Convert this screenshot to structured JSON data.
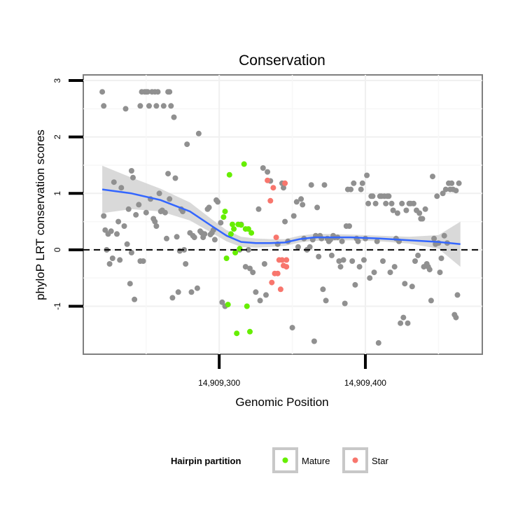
{
  "chart_data": {
    "type": "scatter",
    "title": "Conservation",
    "xlabel": "Genomic Position",
    "ylabel": "phyloP LRT conservation scores",
    "xlim": [
      14909207,
      14909480
    ],
    "ylim": [
      -1.85,
      3.1
    ],
    "xticks": [
      14909300,
      14909400
    ],
    "xtick_labels": [
      "14,909,300",
      "14,909,400"
    ],
    "yticks": [
      -1,
      0,
      1,
      2,
      3
    ],
    "ytick_labels": [
      "-1",
      "0",
      "1",
      "2",
      "3"
    ],
    "reference_line_y": 0,
    "legend": {
      "title": "Hairpin partition",
      "entries": [
        {
          "label": "Mature",
          "color": "#66ee00"
        },
        {
          "label": "Star",
          "color": "#f8766d"
        }
      ]
    },
    "colors": {
      "Other": "#909090",
      "Mature": "#66ee00",
      "Star": "#f8766d",
      "smooth": "#3366ff",
      "band": "#d2d2d2"
    },
    "series": [
      {
        "name": "Other",
        "points": [
          [
            14909220,
            2.8
          ],
          [
            14909221,
            2.55
          ],
          [
            14909221,
            0.6
          ],
          [
            14909222,
            0.35
          ],
          [
            14909223,
            0.0
          ],
          [
            14909224,
            0.28
          ],
          [
            14909225,
            -0.25
          ],
          [
            14909226,
            0.33
          ],
          [
            14909227,
            -0.15
          ],
          [
            14909228,
            1.2
          ],
          [
            14909230,
            0.28
          ],
          [
            14909231,
            0.5
          ],
          [
            14909232,
            -0.18
          ],
          [
            14909233,
            1.1
          ],
          [
            14909235,
            0.42
          ],
          [
            14909236,
            2.5
          ],
          [
            14909237,
            0.1
          ],
          [
            14909238,
            0.72
          ],
          [
            14909239,
            -0.6
          ],
          [
            14909240,
            1.4
          ],
          [
            14909240,
            -0.05
          ],
          [
            14909241,
            1.28
          ],
          [
            14909242,
            -0.88
          ],
          [
            14909243,
            0.62
          ],
          [
            14909245,
            0.8
          ],
          [
            14909246,
            2.55
          ],
          [
            14909246,
            -0.2
          ],
          [
            14909247,
            2.8
          ],
          [
            14909248,
            -0.2
          ],
          [
            14909249,
            2.8
          ],
          [
            14909250,
            0.66
          ],
          [
            14909250,
            2.8
          ],
          [
            14909251,
            2.8
          ],
          [
            14909252,
            2.55
          ],
          [
            14909253,
            0.9
          ],
          [
            14909254,
            2.8
          ],
          [
            14909255,
            0.55
          ],
          [
            14909256,
            0.5
          ],
          [
            14909256,
            2.8
          ],
          [
            14909257,
            2.55
          ],
          [
            14909257,
            0.42
          ],
          [
            14909258,
            2.8
          ],
          [
            14909259,
            1.0
          ],
          [
            14909260,
            0.68
          ],
          [
            14909261,
            0.7
          ],
          [
            14909262,
            2.55
          ],
          [
            14909263,
            0.66
          ],
          [
            14909264,
            0.2
          ],
          [
            14909265,
            1.35
          ],
          [
            14909265,
            2.8
          ],
          [
            14909266,
            0.9
          ],
          [
            14909266,
            2.8
          ],
          [
            14909267,
            2.55
          ],
          [
            14909268,
            -0.85
          ],
          [
            14909269,
            2.35
          ],
          [
            14909270,
            1.27
          ],
          [
            14909271,
            0.23
          ],
          [
            14909272,
            -0.75
          ],
          [
            14909273,
            -0.02
          ],
          [
            14909274,
            0.72
          ],
          [
            14909275,
            0.68
          ],
          [
            14909276,
            0.0
          ],
          [
            14909277,
            -0.25
          ],
          [
            14909278,
            1.87
          ],
          [
            14909280,
            0.3
          ],
          [
            14909281,
            -0.75
          ],
          [
            14909282,
            0.25
          ],
          [
            14909283,
            0.22
          ],
          [
            14909285,
            -0.68
          ],
          [
            14909286,
            2.06
          ],
          [
            14909287,
            0.33
          ],
          [
            14909288,
            0.3
          ],
          [
            14909289,
            0.22
          ],
          [
            14909290,
            0.28
          ],
          [
            14909292,
            0.72
          ],
          [
            14909293,
            0.75
          ],
          [
            14909294,
            0.27
          ],
          [
            14909295,
            0.3
          ],
          [
            14909296,
            0.35
          ],
          [
            14909297,
            0.18
          ],
          [
            14909298,
            0.88
          ],
          [
            14909299,
            0.85
          ],
          [
            14909301,
            0.48
          ],
          [
            14909302,
            -0.93
          ],
          [
            14909304,
            -1.0
          ],
          [
            14909314,
            0.0
          ],
          [
            14909315,
            0.45
          ],
          [
            14909318,
            -0.3
          ],
          [
            14909320,
            0.0
          ],
          [
            14909321,
            -0.33
          ],
          [
            14909323,
            -0.4
          ],
          [
            14909325,
            -0.75
          ],
          [
            14909327,
            0.72
          ],
          [
            14909328,
            -0.9
          ],
          [
            14909330,
            1.45
          ],
          [
            14909331,
            -0.25
          ],
          [
            14909332,
            -0.8
          ],
          [
            14909333,
            1.38
          ],
          [
            14909335,
            1.22
          ],
          [
            14909340,
            0.1
          ],
          [
            14909343,
            1.18
          ],
          [
            14909344,
            1.1
          ],
          [
            14909345,
            0.5
          ],
          [
            14909347,
            0.15
          ],
          [
            14909350,
            -1.38
          ],
          [
            14909351,
            0.6
          ],
          [
            14909353,
            0.85
          ],
          [
            14909354,
            0.05
          ],
          [
            14909356,
            0.9
          ],
          [
            14909357,
            0.8
          ],
          [
            14909358,
            0.2
          ],
          [
            14909360,
            0.0
          ],
          [
            14909362,
            0.05
          ],
          [
            14909363,
            1.15
          ],
          [
            14909364,
            0.18
          ],
          [
            14909365,
            -1.62
          ],
          [
            14909366,
            0.25
          ],
          [
            14909367,
            0.75
          ],
          [
            14909368,
            -0.12
          ],
          [
            14909369,
            0.25
          ],
          [
            14909370,
            0.2
          ],
          [
            14909371,
            -0.7
          ],
          [
            14909372,
            1.15
          ],
          [
            14909373,
            -0.9
          ],
          [
            14909374,
            0.2
          ],
          [
            14909375,
            0.15
          ],
          [
            14909376,
            0.18
          ],
          [
            14909377,
            -0.1
          ],
          [
            14909378,
            0.25
          ],
          [
            14909379,
            0.22
          ],
          [
            14909381,
            0.22
          ],
          [
            14909382,
            -0.2
          ],
          [
            14909383,
            -0.3
          ],
          [
            14909384,
            0.15
          ],
          [
            14909385,
            -0.18
          ],
          [
            14909386,
            -0.95
          ],
          [
            14909387,
            0.42
          ],
          [
            14909388,
            1.07
          ],
          [
            14909389,
            0.42
          ],
          [
            14909390,
            1.07
          ],
          [
            14909391,
            -0.2
          ],
          [
            14909392,
            1.18
          ],
          [
            14909393,
            -0.62
          ],
          [
            14909394,
            0.2
          ],
          [
            14909395,
            0.15
          ],
          [
            14909396,
            -0.3
          ],
          [
            14909397,
            1.07
          ],
          [
            14909398,
            1.18
          ],
          [
            14909399,
            -0.18
          ],
          [
            14909400,
            0.2
          ],
          [
            14909401,
            1.32
          ],
          [
            14909402,
            0.82
          ],
          [
            14909403,
            -0.5
          ],
          [
            14909404,
            0.95
          ],
          [
            14909405,
            0.95
          ],
          [
            14909406,
            -0.4
          ],
          [
            14909407,
            0.82
          ],
          [
            14909408,
            0.15
          ],
          [
            14909409,
            -1.65
          ],
          [
            14909410,
            0.95
          ],
          [
            14909411,
            0.95
          ],
          [
            14909412,
            -0.2
          ],
          [
            14909413,
            0.95
          ],
          [
            14909414,
            0.82
          ],
          [
            14909415,
            0.95
          ],
          [
            14909416,
            0.95
          ],
          [
            14909417,
            -0.4
          ],
          [
            14909418,
            0.82
          ],
          [
            14909419,
            0.7
          ],
          [
            14909420,
            -0.3
          ],
          [
            14909421,
            0.2
          ],
          [
            14909422,
            0.65
          ],
          [
            14909423,
            0.15
          ],
          [
            14909424,
            -1.3
          ],
          [
            14909425,
            0.82
          ],
          [
            14909426,
            -1.2
          ],
          [
            14909427,
            -0.6
          ],
          [
            14909428,
            0.7
          ],
          [
            14909429,
            -1.3
          ],
          [
            14909430,
            0.82
          ],
          [
            14909431,
            0.82
          ],
          [
            14909432,
            -0.65
          ],
          [
            14909433,
            0.82
          ],
          [
            14909434,
            -0.2
          ],
          [
            14909435,
            0.7
          ],
          [
            14909436,
            -0.1
          ],
          [
            14909437,
            0.65
          ],
          [
            14909438,
            0.55
          ],
          [
            14909439,
            0.55
          ],
          [
            14909440,
            -0.3
          ],
          [
            14909441,
            0.72
          ],
          [
            14909442,
            -0.25
          ],
          [
            14909443,
            -0.3
          ],
          [
            14909444,
            -0.35
          ],
          [
            14909445,
            -0.9
          ],
          [
            14909446,
            1.3
          ],
          [
            14909447,
            0.2
          ],
          [
            14909448,
            0.1
          ],
          [
            14909449,
            0.95
          ],
          [
            14909450,
            0.12
          ],
          [
            14909451,
            -0.4
          ],
          [
            14909452,
            -0.15
          ],
          [
            14909453,
            1.0
          ],
          [
            14909454,
            0.25
          ],
          [
            14909455,
            1.07
          ],
          [
            14909456,
            0.12
          ],
          [
            14909457,
            1.18
          ],
          [
            14909458,
            1.07
          ],
          [
            14909459,
            1.18
          ],
          [
            14909460,
            1.07
          ],
          [
            14909461,
            -1.15
          ],
          [
            14909462,
            1.05
          ],
          [
            14909462,
            -1.2
          ],
          [
            14909463,
            -0.8
          ],
          [
            14909464,
            1.18
          ]
        ]
      },
      {
        "name": "Mature",
        "points": [
          [
            14909303,
            0.58
          ],
          [
            14909304,
            0.68
          ],
          [
            14909305,
            -0.15
          ],
          [
            14909306,
            -0.97
          ],
          [
            14909307,
            1.33
          ],
          [
            14909308,
            0.28
          ],
          [
            14909309,
            0.45
          ],
          [
            14909310,
            0.37
          ],
          [
            14909311,
            -0.05
          ],
          [
            14909312,
            -1.48
          ],
          [
            14909313,
            0.45
          ],
          [
            14909314,
            0.02
          ],
          [
            14909315,
            0.44
          ],
          [
            14909317,
            1.52
          ],
          [
            14909318,
            0.37
          ],
          [
            14909319,
            -1.0
          ],
          [
            14909320,
            0.37
          ],
          [
            14909321,
            -1.45
          ],
          [
            14909322,
            0.3
          ]
        ]
      },
      {
        "name": "Star",
        "points": [
          [
            14909333,
            1.23
          ],
          [
            14909335,
            0.87
          ],
          [
            14909336,
            -0.58
          ],
          [
            14909337,
            1.1
          ],
          [
            14909338,
            -0.42
          ],
          [
            14909339,
            0.22
          ],
          [
            14909340,
            -0.42
          ],
          [
            14909341,
            -0.18
          ],
          [
            14909342,
            -0.7
          ],
          [
            14909343,
            -0.18
          ],
          [
            14909344,
            -0.28
          ],
          [
            14909345,
            1.18
          ],
          [
            14909346,
            -0.3
          ],
          [
            14909346,
            -0.18
          ]
        ]
      }
    ],
    "smooth_fit": {
      "x": [
        14909220,
        14909240,
        14909260,
        14909280,
        14909295,
        14909305,
        14909315,
        14909325,
        14909335,
        14909345,
        14909355,
        14909365,
        14909375,
        14909390,
        14909410,
        14909430,
        14909450,
        14909465
      ],
      "y": [
        1.07,
        1.0,
        0.88,
        0.68,
        0.42,
        0.25,
        0.14,
        0.12,
        0.12,
        0.13,
        0.19,
        0.22,
        0.22,
        0.22,
        0.2,
        0.17,
        0.14,
        0.1
      ],
      "lower": [
        0.65,
        0.72,
        0.68,
        0.52,
        0.3,
        0.15,
        0.05,
        0.04,
        0.05,
        0.07,
        0.13,
        0.16,
        0.16,
        0.17,
        0.15,
        0.11,
        0.02,
        -0.3
      ],
      "upper": [
        1.49,
        1.28,
        1.08,
        0.84,
        0.54,
        0.35,
        0.23,
        0.2,
        0.19,
        0.19,
        0.25,
        0.28,
        0.28,
        0.27,
        0.25,
        0.23,
        0.26,
        0.5
      ]
    }
  }
}
